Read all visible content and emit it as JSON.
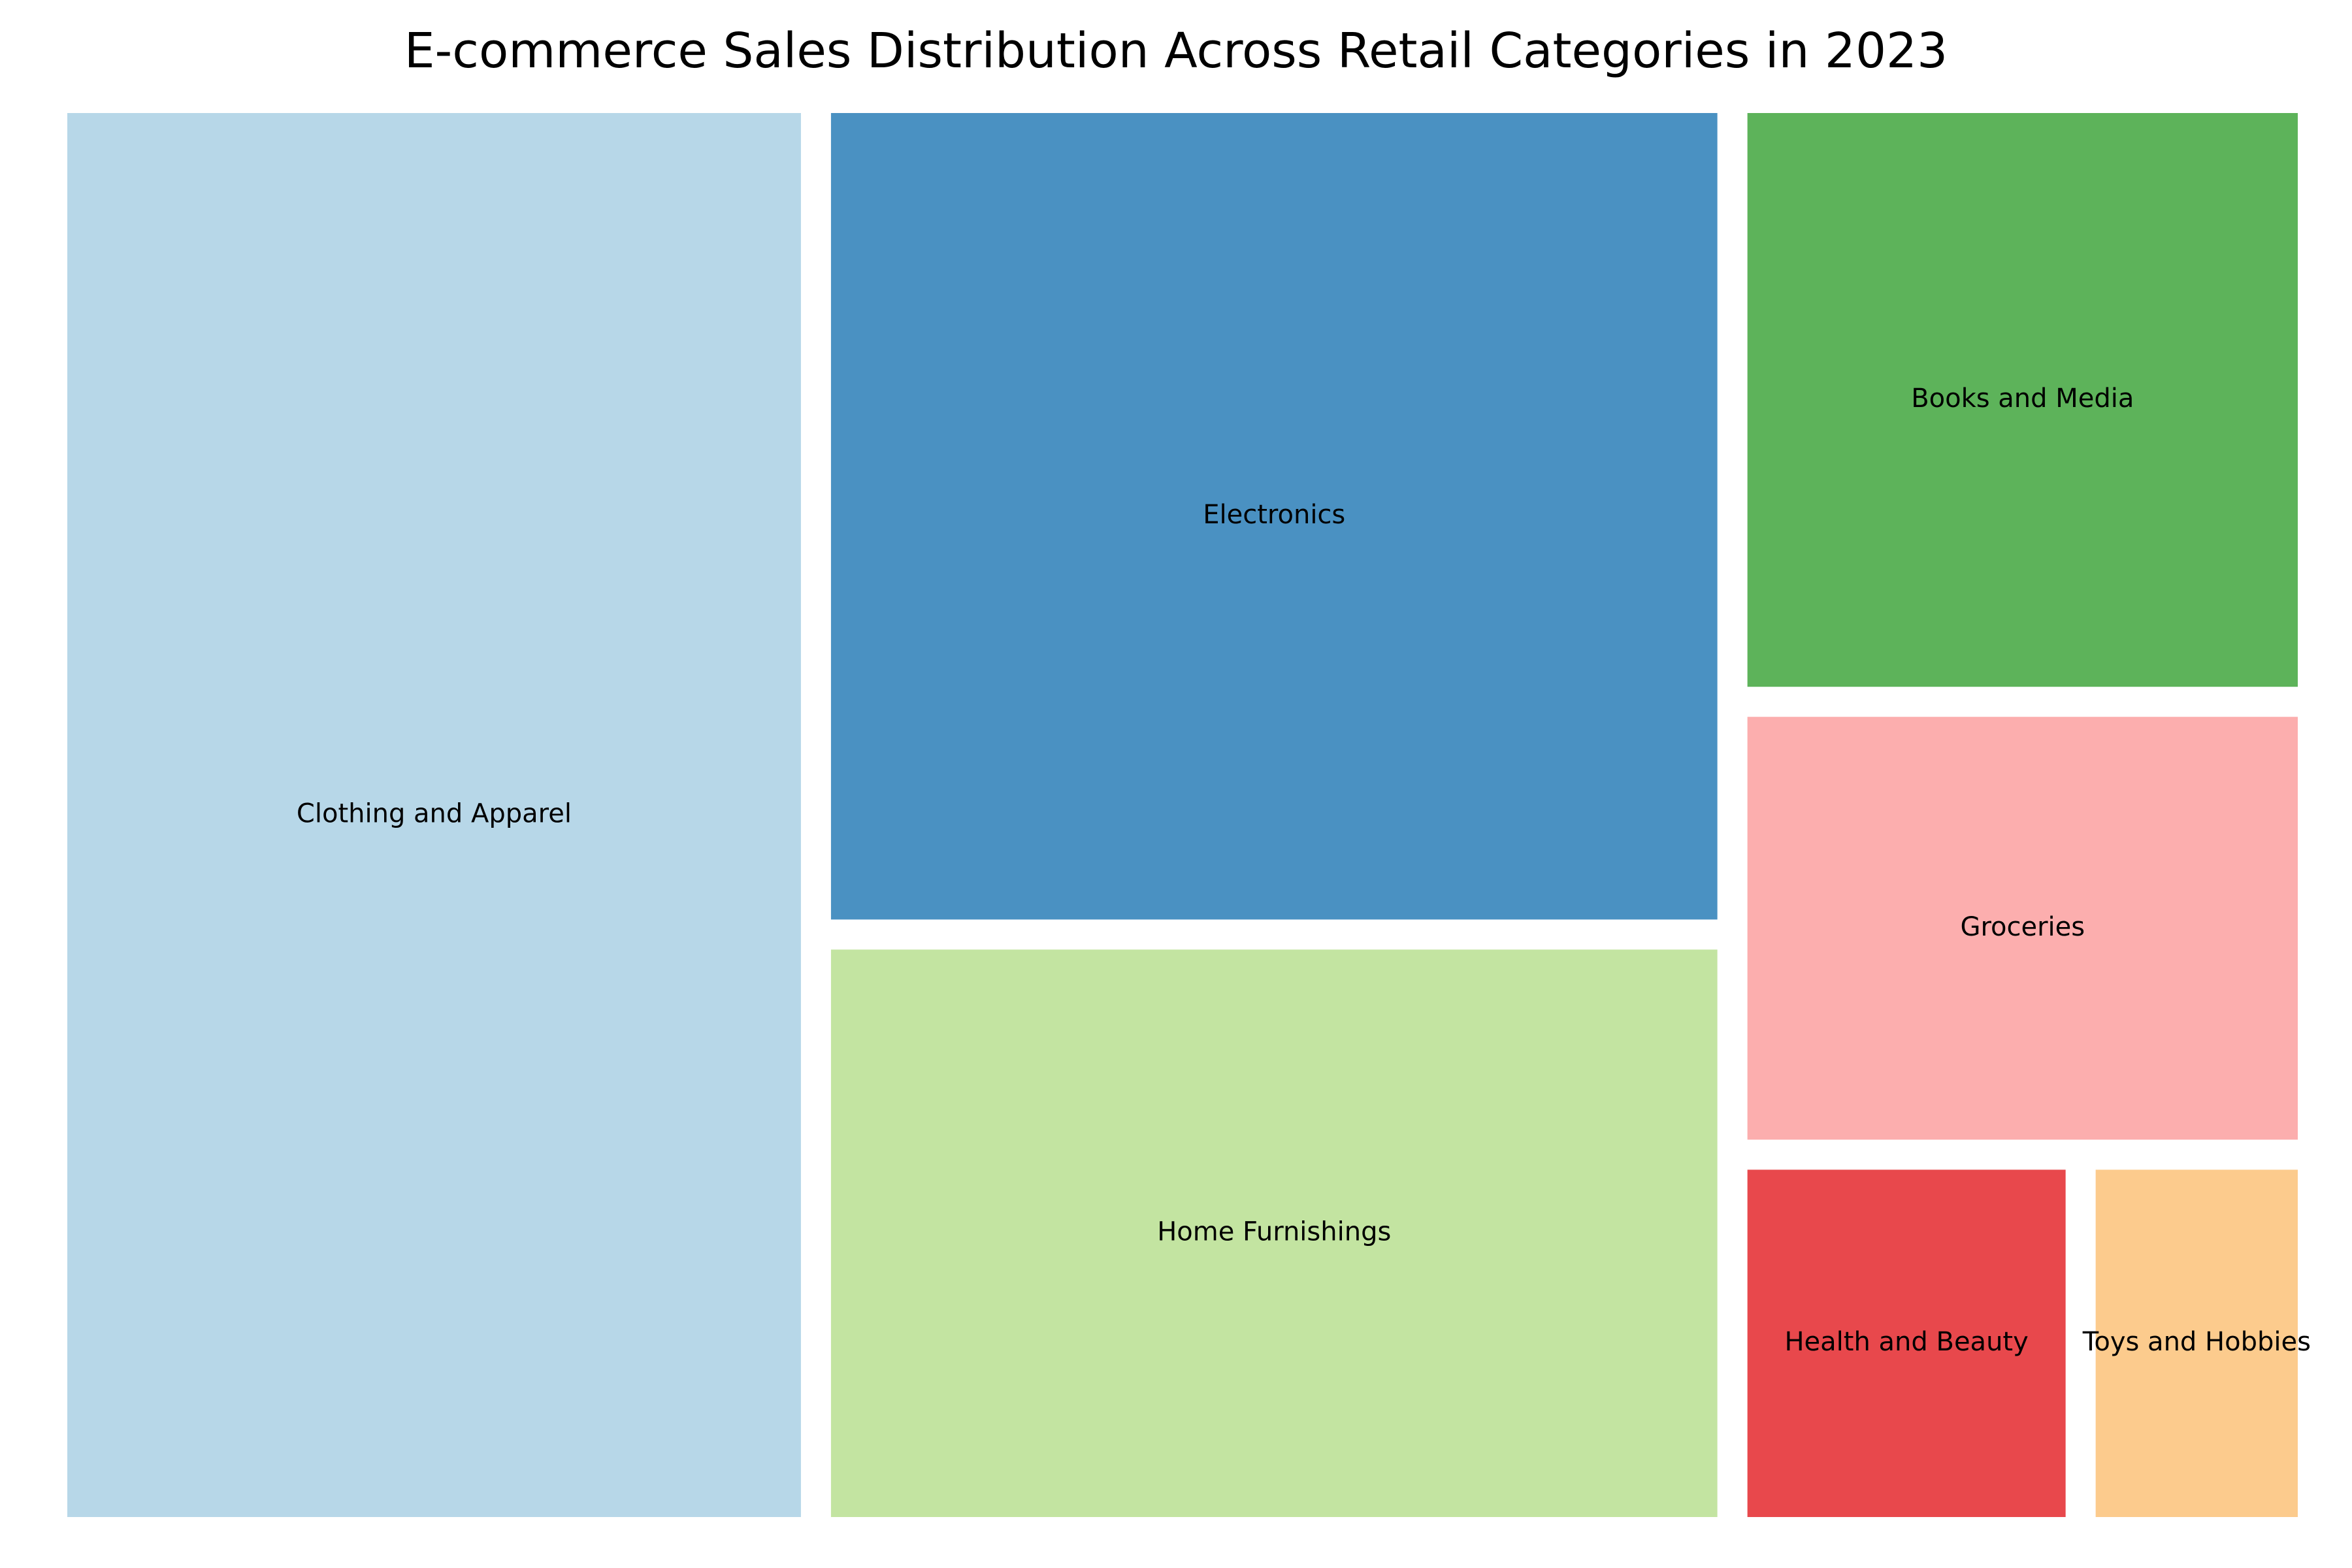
{
  "chart_data": {
    "type": "treemap",
    "title": "E-commerce Sales Distribution Across Retail Categories in 2023",
    "categories": [
      "Electronics",
      "Clothing and Apparel",
      "Home Furnishings",
      "Books and Media",
      "Groceries",
      "Health and Beauty",
      "Toys and Hobbies"
    ],
    "values": [
      35,
      50,
      25,
      16,
      12,
      6,
      4
    ],
    "colors": [
      "#4a91c2",
      "#b7d7e8",
      "#c3e4a1",
      "#5db35a",
      "#fcaeae",
      "#e8484c",
      "#fccb8d"
    ],
    "grid": false,
    "legend": "none"
  }
}
